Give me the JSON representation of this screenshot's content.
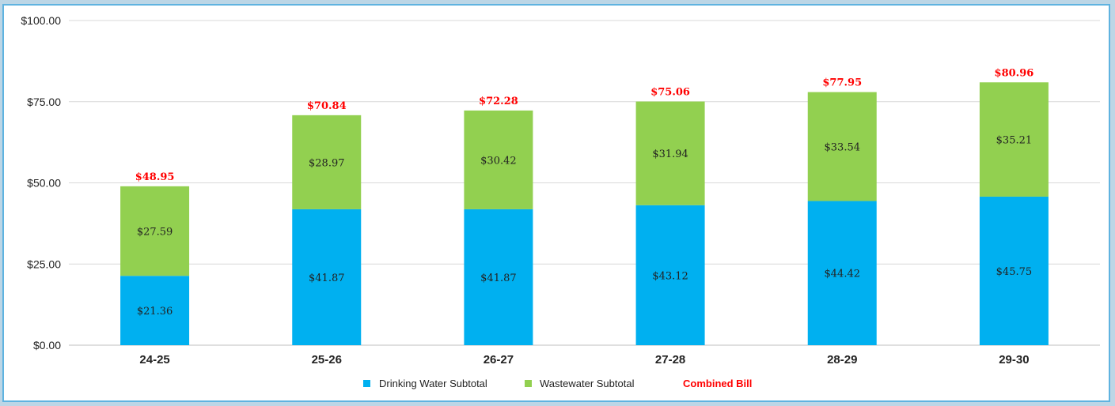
{
  "chart_data": {
    "type": "bar",
    "stacked": true,
    "categories": [
      "24-25",
      "25-26",
      "26-27",
      "27-28",
      "28-29",
      "29-30"
    ],
    "series": [
      {
        "name": "Drinking Water Subtotal",
        "color": "#00b0f0",
        "values": [
          21.36,
          41.87,
          41.87,
          43.12,
          44.42,
          45.75
        ],
        "labels": [
          "$21.36",
          "$41.87",
          "$41.87",
          "$43.12",
          "$44.42",
          "$45.75"
        ]
      },
      {
        "name": "Wastewater  Subtotal",
        "color": "#92d050",
        "values": [
          27.59,
          28.97,
          30.42,
          31.94,
          33.54,
          35.21
        ],
        "labels": [
          "$27.59",
          "$28.97",
          "$30.42",
          "$31.94",
          "$33.54",
          "$35.21"
        ]
      }
    ],
    "totals": {
      "name": "Combined Bill",
      "color": "#ff0000",
      "values": [
        48.95,
        70.84,
        72.28,
        75.06,
        77.95,
        80.96
      ],
      "labels": [
        "$48.95",
        "$70.84",
        "$72.28",
        "$75.06",
        "$77.95",
        "$80.96"
      ]
    },
    "ylim": [
      0,
      100
    ],
    "yticks": [
      0,
      25,
      50,
      75,
      100
    ],
    "ytick_labels": [
      "$0.00",
      "$25.00",
      "$50.00",
      "$75.00",
      "$100.00"
    ],
    "grid": true,
    "legend": "bottom",
    "title": "",
    "xlabel": "",
    "ylabel": ""
  }
}
